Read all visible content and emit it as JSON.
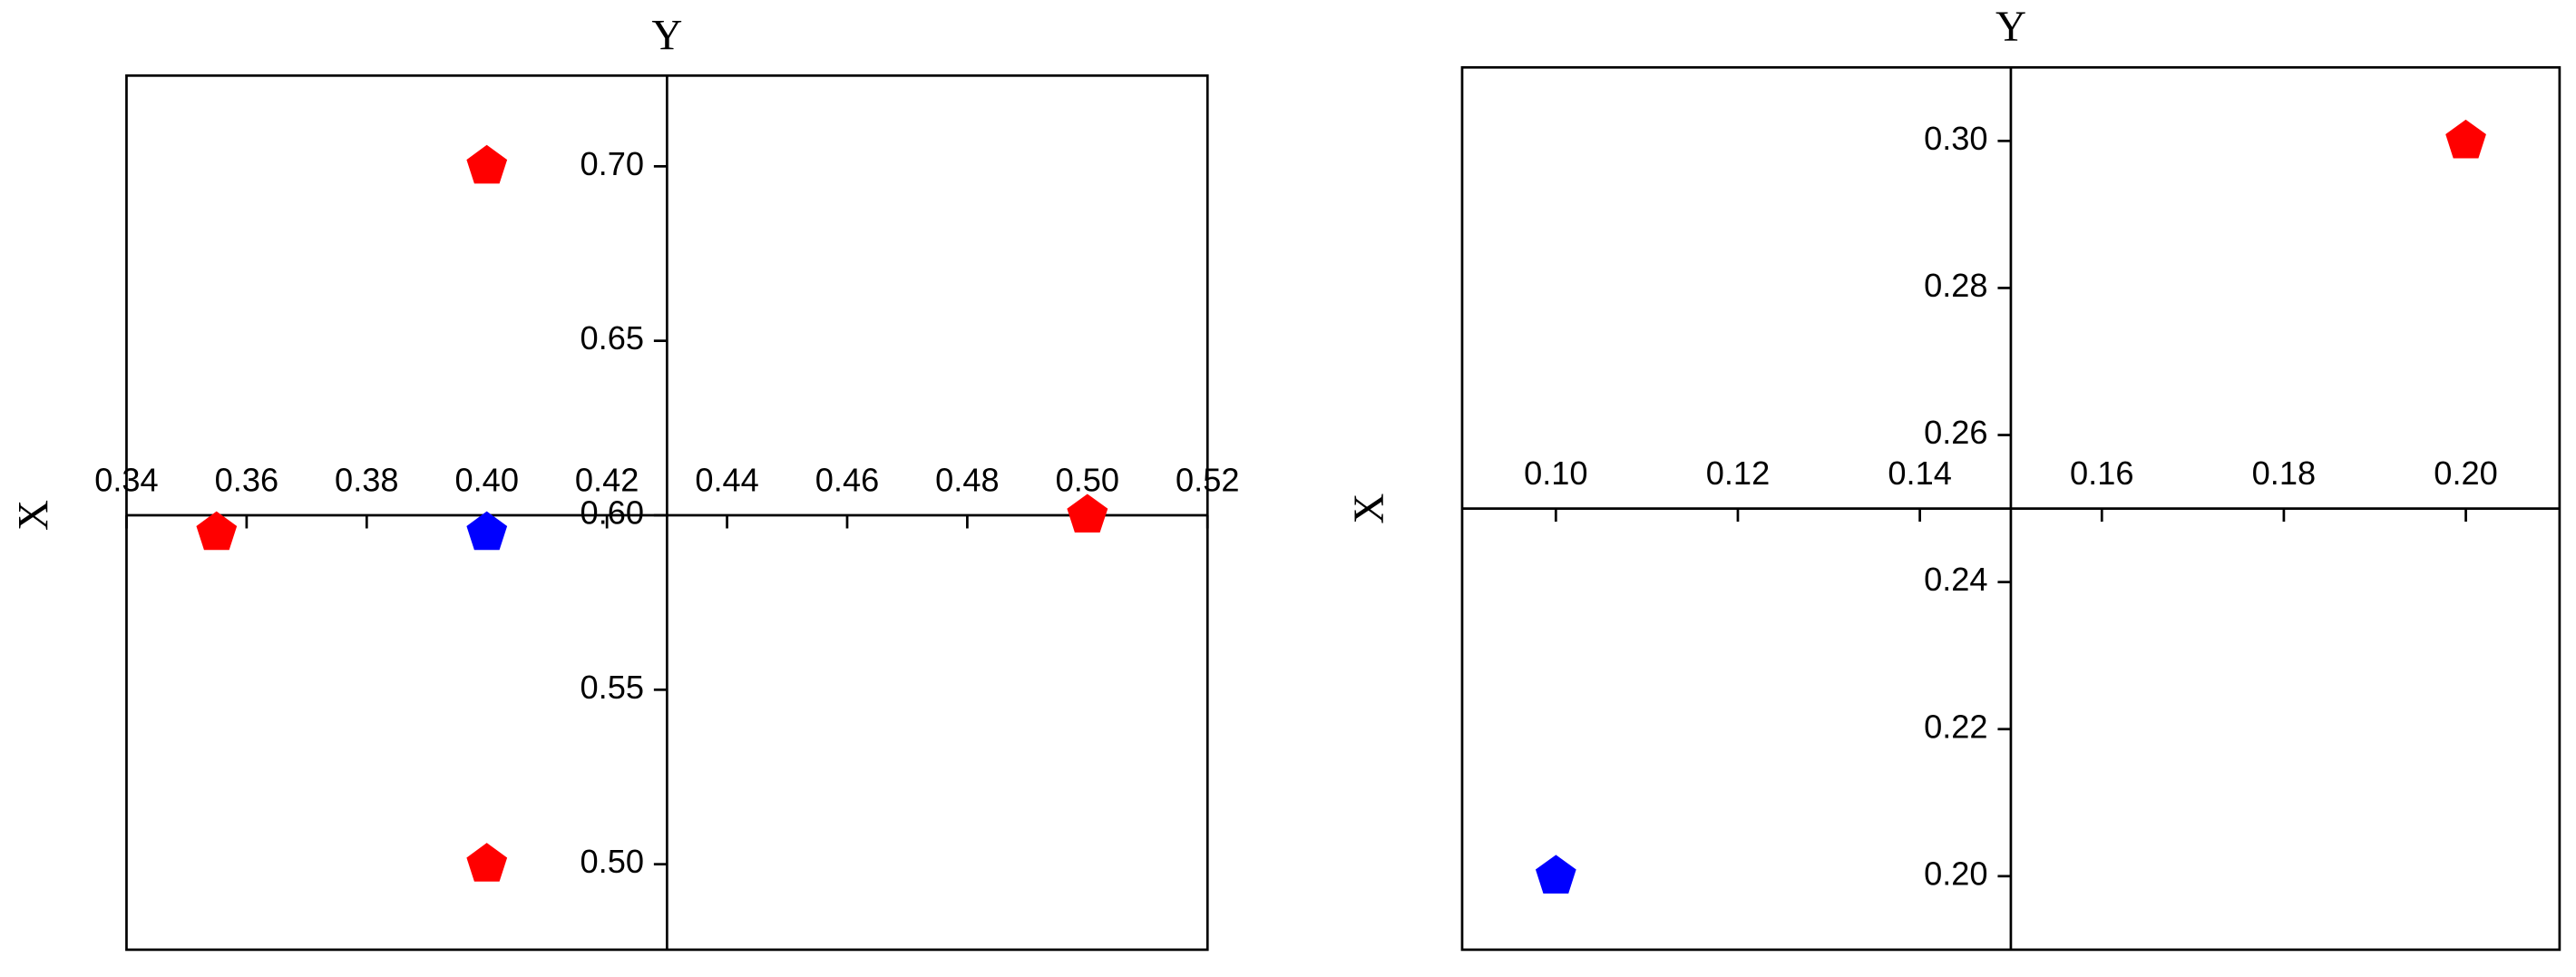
{
  "chart_data": [
    {
      "type": "scatter",
      "x_label": "X",
      "y_label": "Y",
      "xlim": [
        0.34,
        0.52
      ],
      "ylim": [
        0.4755,
        0.726
      ],
      "xticks": [
        {
          "value": 0.34,
          "label": "0.34"
        },
        {
          "value": 0.36,
          "label": "0.36"
        },
        {
          "value": 0.38,
          "label": "0.38"
        },
        {
          "value": 0.4,
          "label": "0.40"
        },
        {
          "value": 0.42,
          "label": "0.42"
        },
        {
          "value": 0.44,
          "label": "0.44"
        },
        {
          "value": 0.46,
          "label": "0.46"
        },
        {
          "value": 0.48,
          "label": "0.48"
        },
        {
          "value": 0.5,
          "label": "0.50"
        },
        {
          "value": 0.52,
          "label": "0.52"
        }
      ],
      "yticks": [
        {
          "value": 0.5,
          "label": "0.50"
        },
        {
          "value": 0.55,
          "label": "0.55"
        },
        {
          "value": 0.6,
          "label": "0.60"
        },
        {
          "value": 0.65,
          "label": "0.65"
        },
        {
          "value": 0.7,
          "label": "0.70"
        }
      ],
      "axis_cross": {
        "x": 0.43,
        "y": 0.6
      },
      "series": [
        {
          "color": "#ff0000",
          "x": [
            0.4,
            0.4,
            0.5,
            0.355
          ],
          "values": [
            0.7,
            0.5,
            0.6,
            0.595
          ]
        },
        {
          "color": "#0000ff",
          "x": [
            0.4
          ],
          "values": [
            0.595
          ]
        }
      ]
    },
    {
      "type": "scatter",
      "x_label": "X",
      "y_label": "Y",
      "xlim": [
        0.0897,
        0.2103
      ],
      "ylim": [
        0.19,
        0.31
      ],
      "xticks": [
        {
          "value": 0.1,
          "label": "0.10"
        },
        {
          "value": 0.12,
          "label": "0.12"
        },
        {
          "value": 0.14,
          "label": "0.14"
        },
        {
          "value": 0.16,
          "label": "0.16"
        },
        {
          "value": 0.18,
          "label": "0.18"
        },
        {
          "value": 0.2,
          "label": "0.20"
        }
      ],
      "yticks": [
        {
          "value": 0.2,
          "label": "0.20"
        },
        {
          "value": 0.22,
          "label": "0.22"
        },
        {
          "value": 0.24,
          "label": "0.24"
        },
        {
          "value": 0.26,
          "label": "0.26"
        },
        {
          "value": 0.28,
          "label": "0.28"
        },
        {
          "value": 0.3,
          "label": "0.30"
        }
      ],
      "axis_cross": {
        "x": 0.15,
        "y": 0.25
      },
      "series": [
        {
          "color": "#ff0000",
          "x": [
            0.2
          ],
          "values": [
            0.3
          ]
        },
        {
          "color": "#0000ff",
          "x": [
            0.1
          ],
          "values": [
            0.2
          ]
        }
      ]
    }
  ]
}
